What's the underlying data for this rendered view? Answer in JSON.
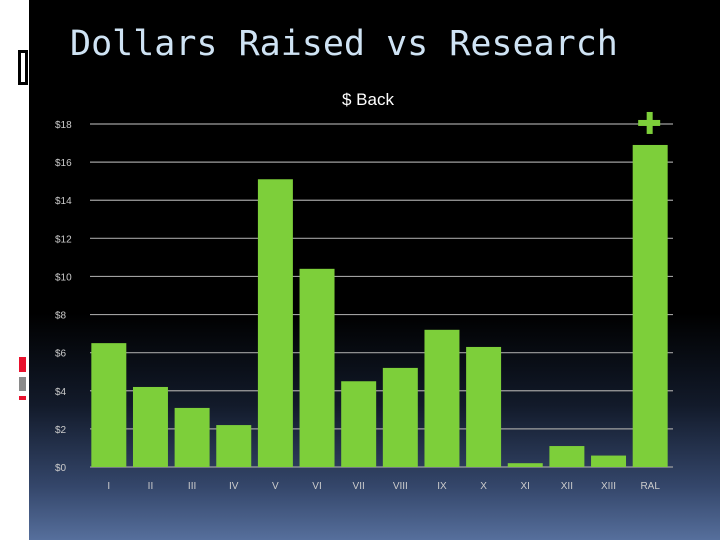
{
  "slide": {
    "title": "Dollars Raised vs Research"
  },
  "chart_data": {
    "type": "bar",
    "title": "$ Back",
    "xlabel": "",
    "ylabel": "",
    "categories": [
      "I",
      "II",
      "III",
      "IV",
      "V",
      "VI",
      "VII",
      "VIII",
      "IX",
      "X",
      "XI",
      "XII",
      "XIII",
      "RAL"
    ],
    "values": [
      6.5,
      4.2,
      3.1,
      2.2,
      15.1,
      10.4,
      4.5,
      5.2,
      7.2,
      6.3,
      0.2,
      1.1,
      0.6,
      16.9
    ],
    "ylim": [
      0,
      18
    ],
    "yticks": [
      0,
      2,
      4,
      6,
      8,
      10,
      12,
      14,
      16,
      18
    ],
    "ytick_labels": [
      "$0",
      "$2",
      "$4",
      "$6",
      "$8",
      "$10",
      "$12",
      "$14",
      "$16",
      "$18"
    ],
    "grid": true,
    "legend": "none",
    "bar_color": "#7dcf3a",
    "annotation_marker": {
      "category": "RAL",
      "symbol": "plus",
      "color": "#7dcf3a"
    }
  },
  "colors": {
    "background": "#000000",
    "title_text": "#cfe3f4",
    "axis_text": "#cccccc",
    "gridline": "#a0a0a0",
    "accent_red": "#e8112d",
    "accent_blue": "#3f5da8"
  }
}
